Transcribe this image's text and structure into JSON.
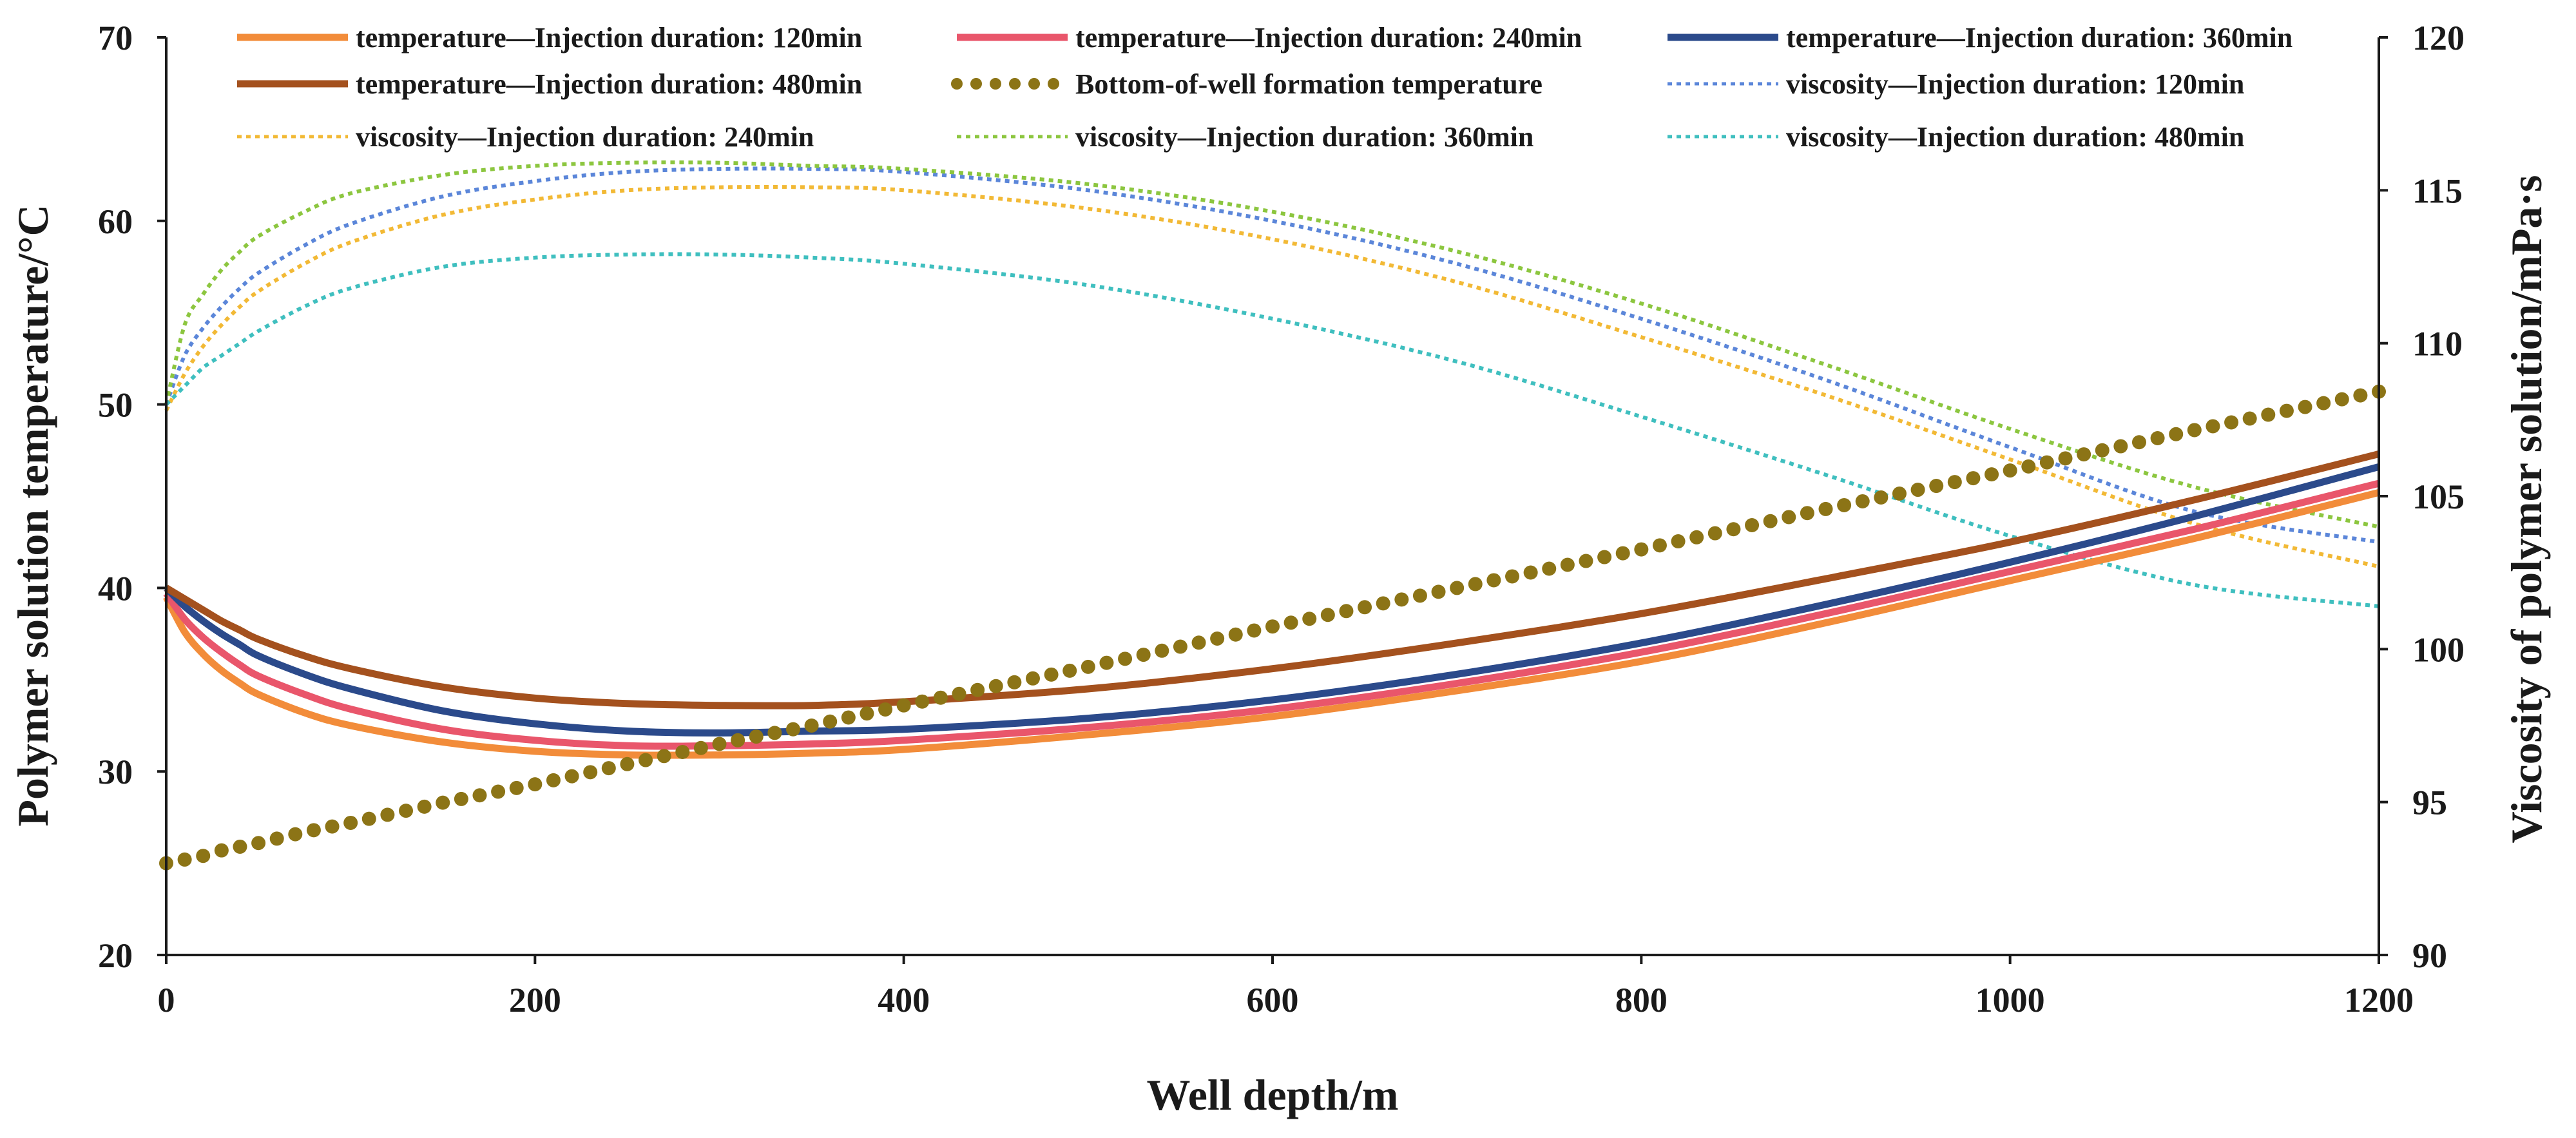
{
  "chart_data": {
    "type": "line",
    "xlabel": "Well depth/m",
    "ylabel_left": "Polymer solution temperature/°C",
    "ylabel_right": "Viscosity of polymer solution/mPa·s",
    "xlim": [
      0,
      1200
    ],
    "ylim_left": [
      20,
      70
    ],
    "ylim_right": [
      90,
      120
    ],
    "x_ticks": [
      "0",
      "200",
      "400",
      "600",
      "800",
      "1000",
      "1200"
    ],
    "y_ticks_left": [
      "20",
      "30",
      "40",
      "50",
      "60",
      "70"
    ],
    "y_ticks_right": [
      "90",
      "95",
      "100",
      "105",
      "110",
      "115",
      "120"
    ],
    "grid": false,
    "legend_position": "top",
    "x": [
      0,
      10,
      20,
      30,
      40,
      50,
      75,
      100,
      150,
      200,
      250,
      300,
      350,
      400,
      500,
      600,
      700,
      800,
      900,
      1000,
      1100,
      1200
    ],
    "series": [
      {
        "name": "temperature—Injection duration: 120min",
        "axis": "left",
        "style": "solid",
        "color": "#F28C3A",
        "values": [
          39.5,
          37.6,
          36.4,
          35.5,
          34.8,
          34.2,
          33.2,
          32.5,
          31.6,
          31.1,
          30.9,
          30.9,
          31.0,
          31.2,
          32.0,
          33.0,
          34.4,
          36.0,
          38.1,
          40.4,
          42.7,
          45.2
        ]
      },
      {
        "name": "temperature—Injection duration: 240min",
        "axis": "left",
        "style": "solid",
        "color": "#E9566B",
        "values": [
          39.7,
          38.3,
          37.3,
          36.5,
          35.8,
          35.2,
          34.2,
          33.4,
          32.3,
          31.7,
          31.4,
          31.4,
          31.5,
          31.7,
          32.4,
          33.4,
          34.8,
          36.5,
          38.6,
          40.9,
          43.2,
          45.7
        ]
      },
      {
        "name": "temperature—Injection duration: 360min",
        "axis": "left",
        "style": "solid",
        "color": "#2B4A8B",
        "values": [
          40.0,
          39.0,
          38.2,
          37.5,
          36.9,
          36.3,
          35.3,
          34.5,
          33.3,
          32.6,
          32.2,
          32.1,
          32.2,
          32.3,
          32.9,
          33.9,
          35.3,
          37.0,
          39.1,
          41.4,
          43.9,
          46.6
        ]
      },
      {
        "name": "temperature—Injection duration: 480min",
        "axis": "left",
        "style": "solid",
        "color": "#A4511E",
        "values": [
          40.0,
          39.4,
          38.8,
          38.2,
          37.7,
          37.2,
          36.3,
          35.6,
          34.6,
          34.0,
          33.7,
          33.6,
          33.6,
          33.8,
          34.5,
          35.6,
          37.0,
          38.6,
          40.5,
          42.5,
          44.8,
          47.3
        ]
      },
      {
        "name": "Bottom-of-well formation temperature",
        "axis": "left",
        "style": "dots",
        "color": "#8C7416",
        "values": [
          25.0,
          25.2,
          25.4,
          25.7,
          25.9,
          26.1,
          26.7,
          27.2,
          28.3,
          29.3,
          30.4,
          31.5,
          32.5,
          33.6,
          35.7,
          37.9,
          40.0,
          42.1,
          44.3,
          46.4,
          48.6,
          50.7
        ]
      },
      {
        "name": "viscosity—Injection duration: 120min",
        "axis": "right",
        "style": "dotted",
        "color": "#5B86D9",
        "values": [
          108.0,
          109.6,
          110.5,
          111.2,
          111.8,
          112.3,
          113.2,
          113.9,
          114.8,
          115.3,
          115.6,
          115.7,
          115.7,
          115.6,
          115.0,
          114.0,
          112.6,
          110.8,
          108.8,
          106.6,
          104.5,
          103.5
        ]
      },
      {
        "name": "viscosity—Injection duration: 240min",
        "axis": "right",
        "style": "dotted",
        "color": "#F2B935",
        "values": [
          107.8,
          109.0,
          109.9,
          110.6,
          111.2,
          111.7,
          112.6,
          113.3,
          114.2,
          114.7,
          115.0,
          115.1,
          115.1,
          115.0,
          114.4,
          113.4,
          112.0,
          110.2,
          108.3,
          106.2,
          104.1,
          102.7
        ]
      },
      {
        "name": "viscosity—Injection duration: 360min",
        "axis": "right",
        "style": "dotted",
        "color": "#8CC63F",
        "values": [
          108.0,
          110.6,
          111.6,
          112.4,
          113.0,
          113.5,
          114.3,
          114.9,
          115.5,
          115.8,
          115.9,
          115.9,
          115.8,
          115.7,
          115.2,
          114.3,
          113.0,
          111.3,
          109.3,
          107.2,
          105.3,
          104.0
        ]
      },
      {
        "name": "viscosity—Injection duration: 480min",
        "axis": "right",
        "style": "dotted",
        "color": "#3FBFBF",
        "values": [
          108.0,
          108.6,
          109.2,
          109.6,
          110.0,
          110.4,
          111.2,
          111.8,
          112.5,
          112.8,
          112.9,
          112.9,
          112.8,
          112.6,
          111.9,
          110.8,
          109.4,
          107.6,
          105.7,
          103.7,
          102.1,
          101.4
        ]
      }
    ]
  }
}
